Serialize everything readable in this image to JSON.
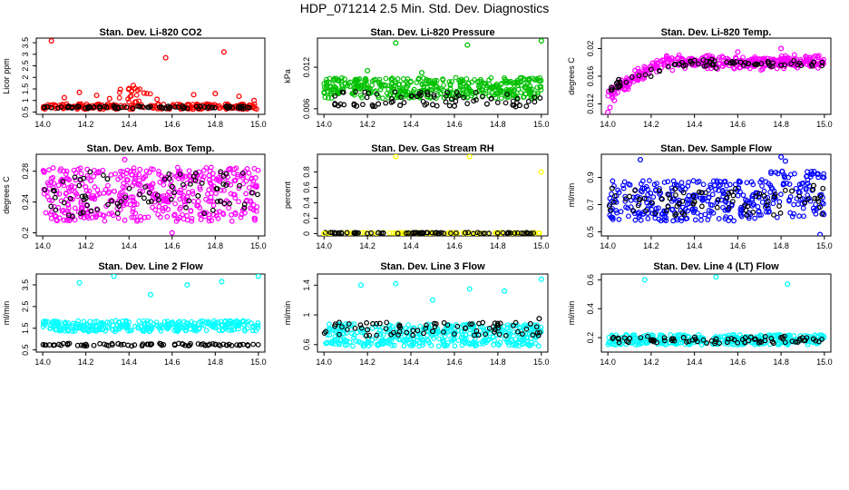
{
  "figure": {
    "title": "HDP_071214  2.5 Min. Std. Dev. Diagnostics"
  },
  "chart_data": [
    {
      "id": "co2",
      "type": "scatter",
      "title": "Stan. Dev. Li-820 CO2",
      "xlabel": "",
      "ylabel": "Licor ppm",
      "xlim": [
        13.97,
        15.03
      ],
      "ylim": [
        0.4,
        3.7
      ],
      "xticks": [
        14.0,
        14.2,
        14.4,
        14.6,
        14.8,
        15.0
      ],
      "yticks": [
        0.5,
        1.0,
        1.5,
        2.0,
        2.5,
        3.0,
        3.5
      ],
      "series": [
        {
          "color": "#ff0000",
          "x": [
            14.04,
            14.1,
            14.17,
            14.25,
            14.31,
            14.36,
            14.4,
            14.42,
            14.44,
            14.47,
            14.53,
            14.57,
            14.7,
            14.8,
            14.84,
            14.91,
            14.98
          ],
          "y": [
            3.58,
            1.12,
            1.35,
            1.22,
            1.08,
            1.48,
            1.52,
            1.65,
            1.45,
            1.32,
            1.05,
            2.85,
            1.25,
            1.3,
            3.1,
            1.18,
            1.0
          ]
        },
        {
          "color": "#000000",
          "x": [
            14.02,
            14.12,
            14.22,
            14.33,
            14.45,
            14.55,
            14.65,
            14.75,
            14.85,
            14.95
          ],
          "y": [
            0.72,
            0.74,
            0.7,
            0.76,
            0.73,
            0.71,
            0.75,
            0.72,
            0.74,
            0.7
          ]
        }
      ]
    },
    {
      "id": "pressure",
      "type": "scatter",
      "title": "Stan. Dev. Li-820 Pressure",
      "xlabel": "",
      "ylabel": "kPa",
      "xlim": [
        13.97,
        15.03
      ],
      "ylim": [
        0.0052,
        0.0162
      ],
      "xticks": [
        14.0,
        14.2,
        14.4,
        14.6,
        14.8,
        15.0
      ],
      "yticks": [
        0.006,
        0.012
      ],
      "series": [
        {
          "color": "#00c000",
          "x": [
            14.33,
            14.66,
            15.0,
            14.2,
            14.45
          ],
          "y": [
            0.0155,
            0.0152,
            0.0158,
            0.0115,
            0.0112
          ]
        },
        {
          "color": "#000000",
          "x": [
            14.05,
            14.15,
            14.25,
            14.35,
            14.5,
            14.6,
            14.75,
            14.9
          ],
          "y": [
            0.0066,
            0.0064,
            0.0067,
            0.0065,
            0.0066,
            0.0064,
            0.0067,
            0.0065
          ]
        }
      ]
    },
    {
      "id": "temp",
      "type": "scatter",
      "title": "Stan. Dev. Li-820 Temp.",
      "xlabel": "",
      "ylabel": "degrees C",
      "xlim": [
        13.97,
        15.03
      ],
      "ylim": [
        0.0105,
        0.0215
      ],
      "xticks": [
        14.0,
        14.2,
        14.4,
        14.6,
        14.8,
        15.0
      ],
      "yticks": [
        0.012,
        0.016,
        0.02
      ],
      "series": [
        {
          "color": "#ff00ff",
          "x": [
            14.0,
            14.01,
            14.03,
            14.6,
            14.8
          ],
          "y": [
            0.0108,
            0.0115,
            0.0125,
            0.0195,
            0.02
          ]
        },
        {
          "color": "#000000",
          "x": [
            14.05,
            14.2,
            14.35,
            14.5,
            14.65,
            14.8,
            14.95
          ],
          "y": [
            0.0155,
            0.017,
            0.0175,
            0.0172,
            0.0178,
            0.0176,
            0.018
          ]
        }
      ]
    },
    {
      "id": "ambbox",
      "type": "scatter",
      "title": "Stan. Dev. Amb. Box Temp.",
      "xlabel": "",
      "ylabel": "degrees C",
      "xlim": [
        13.97,
        15.03
      ],
      "ylim": [
        0.196,
        0.302
      ],
      "xticks": [
        14.0,
        14.2,
        14.4,
        14.6,
        14.8,
        15.0
      ],
      "yticks": [
        0.2,
        0.24,
        0.28
      ],
      "series": [
        {
          "color": "#ff00ff",
          "x": [
            14.6,
            14.38
          ],
          "y": [
            0.2,
            0.295
          ]
        },
        {
          "color": "#000000",
          "x": [
            14.05,
            14.2,
            14.3,
            14.45,
            14.6,
            14.72,
            14.85,
            14.97
          ],
          "y": [
            0.255,
            0.245,
            0.27,
            0.25,
            0.26,
            0.248,
            0.262,
            0.252
          ]
        }
      ]
    },
    {
      "id": "rh",
      "type": "scatter",
      "title": "Stan. Dev. Gas Stream RH",
      "xlabel": "",
      "ylabel": "percent",
      "xlim": [
        13.97,
        15.03
      ],
      "ylim": [
        -0.03,
        1.03
      ],
      "xticks": [
        14.0,
        14.2,
        14.4,
        14.6,
        14.8,
        15.0
      ],
      "yticks": [
        0.0,
        0.2,
        0.4,
        0.6,
        0.8
      ],
      "series": [
        {
          "color": "#ffff00",
          "x": [
            14.0,
            14.33,
            14.67,
            15.0
          ],
          "y": [
            0.0,
            1.0,
            1.0,
            0.8
          ]
        },
        {
          "color": "#000000",
          "x": [
            14.05,
            14.25,
            14.45,
            14.65,
            14.85
          ],
          "y": [
            0.01,
            0.01,
            0.01,
            0.01,
            0.01
          ]
        }
      ]
    },
    {
      "id": "sampleflow",
      "type": "scatter",
      "title": "Stan. Dev. Sample Flow",
      "xlabel": "",
      "ylabel": "ml/min",
      "xlim": [
        13.97,
        15.03
      ],
      "ylim": [
        0.47,
        1.07
      ],
      "xticks": [
        14.0,
        14.2,
        14.4,
        14.6,
        14.8,
        15.0
      ],
      "yticks": [
        0.5,
        0.7,
        0.9
      ],
      "series": [
        {
          "color": "#0000ff",
          "x": [
            14.15,
            14.8,
            14.82,
            14.98
          ],
          "y": [
            1.03,
            1.05,
            1.02,
            0.48
          ]
        },
        {
          "color": "#000000",
          "x": [
            14.02,
            14.1,
            14.25,
            14.4,
            14.55,
            14.7,
            14.85,
            14.95
          ],
          "y": [
            0.82,
            0.76,
            0.74,
            0.72,
            0.75,
            0.78,
            0.8,
            0.84
          ]
        }
      ]
    },
    {
      "id": "line2",
      "type": "scatter",
      "title": "Stan. Dev. Line 2 Flow",
      "xlabel": "",
      "ylabel": "ml/min",
      "xlim": [
        13.97,
        15.03
      ],
      "ylim": [
        0.4,
        4.0
      ],
      "xticks": [
        14.0,
        14.2,
        14.4,
        14.6,
        14.8,
        15.0
      ],
      "yticks": [
        0.5,
        1.5,
        2.5,
        3.5
      ],
      "series": [
        {
          "color": "#00ffff",
          "x": [
            14.17,
            14.33,
            14.5,
            14.67,
            14.83,
            15.0
          ],
          "y": [
            3.6,
            3.9,
            3.05,
            3.5,
            3.65,
            3.9
          ]
        },
        {
          "color": "#000000",
          "x": [
            14.05,
            14.2,
            14.35,
            14.5,
            14.65,
            14.8,
            14.95
          ],
          "y": [
            0.72,
            0.75,
            0.78,
            0.74,
            0.76,
            0.75,
            0.73
          ]
        }
      ]
    },
    {
      "id": "line3",
      "type": "scatter",
      "title": "Stan. Dev. Line 3 Flow",
      "xlabel": "",
      "ylabel": "ml/min",
      "xlim": [
        13.97,
        15.03
      ],
      "ylim": [
        0.5,
        1.55
      ],
      "xticks": [
        14.0,
        14.2,
        14.4,
        14.6,
        14.8,
        15.0
      ],
      "yticks": [
        0.6,
        1.0,
        1.4
      ],
      "series": [
        {
          "color": "#00ffff",
          "x": [
            14.17,
            14.33,
            14.5,
            14.67,
            14.83,
            15.0
          ],
          "y": [
            1.4,
            1.42,
            1.2,
            1.35,
            1.32,
            1.48
          ]
        },
        {
          "color": "#000000",
          "x": [
            14.05,
            14.2,
            14.35,
            14.5,
            14.65,
            14.8,
            14.95,
            14.99
          ],
          "y": [
            0.85,
            0.8,
            0.83,
            0.78,
            0.82,
            0.86,
            0.88,
            0.95
          ]
        }
      ]
    },
    {
      "id": "line4",
      "type": "scatter",
      "title": "Stan. Dev. Line 4 (LT) Flow",
      "xlabel": "",
      "ylabel": "ml/min",
      "xlim": [
        13.97,
        15.03
      ],
      "ylim": [
        0.1,
        0.64
      ],
      "xticks": [
        14.0,
        14.2,
        14.4,
        14.6,
        14.8,
        15.0
      ],
      "yticks": [
        0.2,
        0.4,
        0.6
      ],
      "series": [
        {
          "color": "#00ffff",
          "x": [
            14.17,
            14.5,
            14.83
          ],
          "y": [
            0.6,
            0.62,
            0.57
          ]
        },
        {
          "color": "#000000",
          "x": [
            14.05,
            14.2,
            14.35,
            14.5,
            14.65,
            14.8,
            14.95
          ],
          "y": [
            0.19,
            0.18,
            0.2,
            0.19,
            0.18,
            0.2,
            0.19
          ]
        }
      ]
    }
  ]
}
